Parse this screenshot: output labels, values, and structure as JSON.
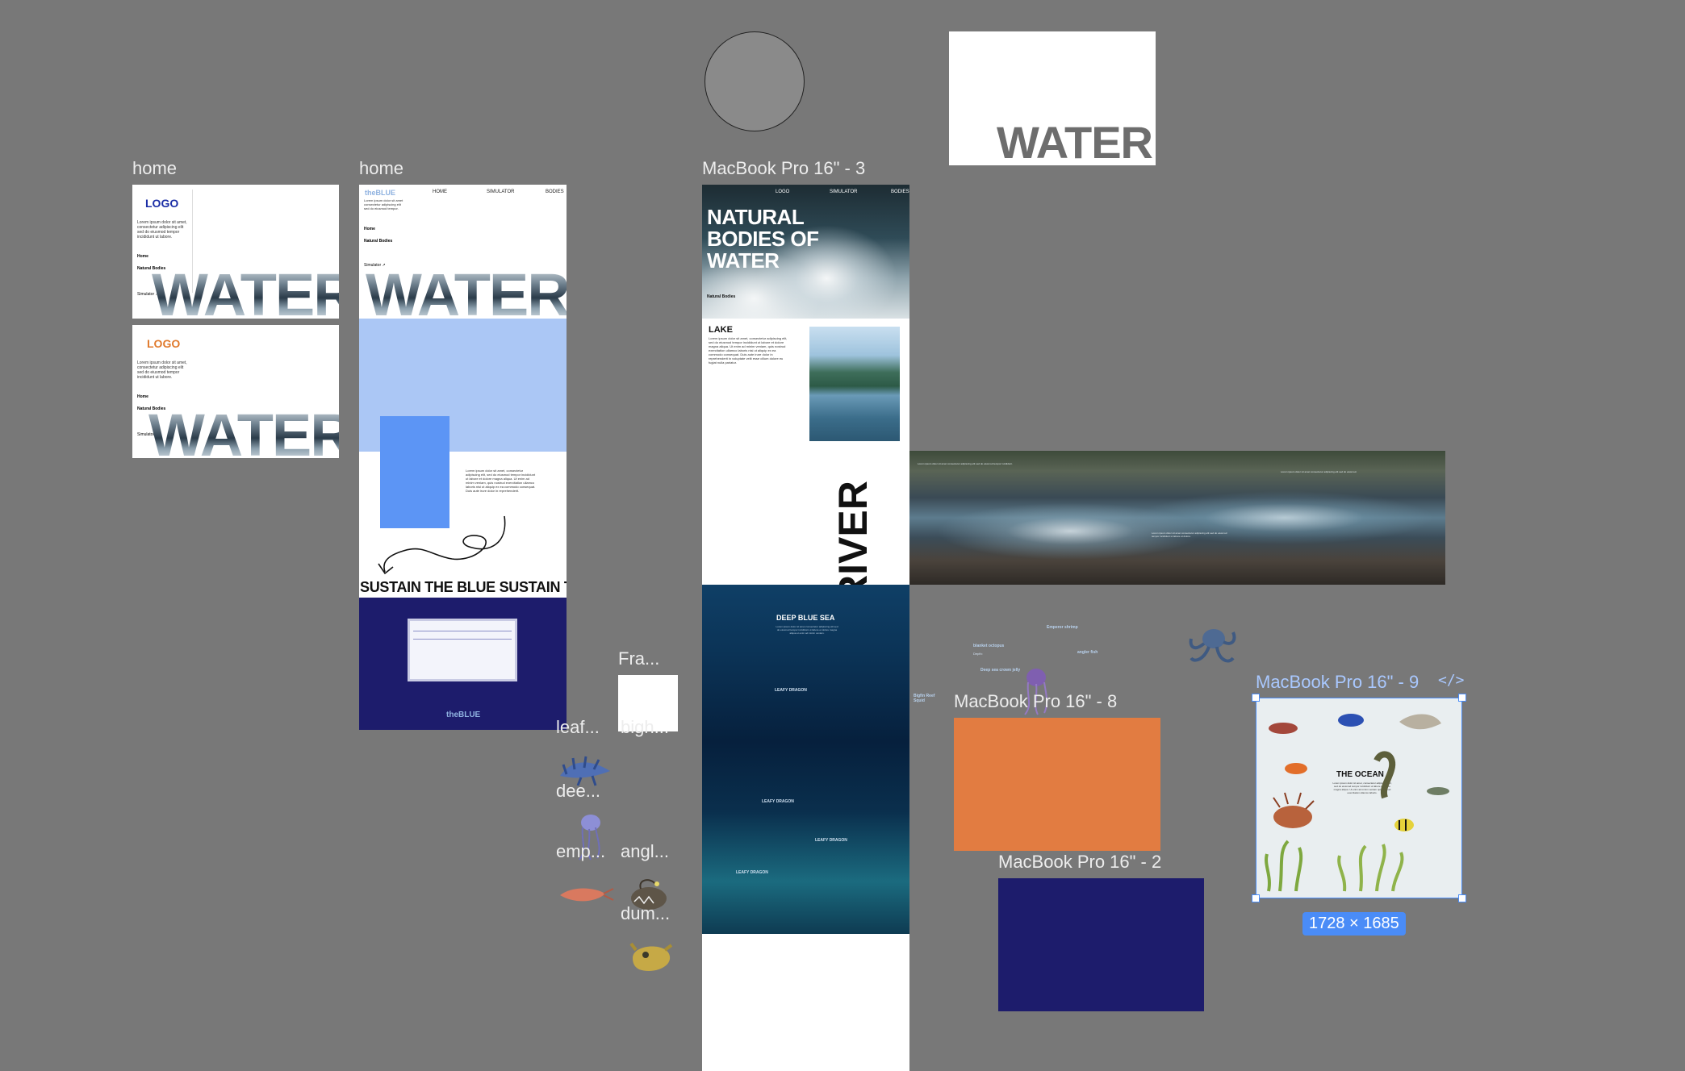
{
  "shapes": {
    "top_card_text": "WATER"
  },
  "frames": {
    "home1": {
      "label": "home",
      "variant_a": {
        "logo": "LOGO",
        "logo_color": "#1b2ea6",
        "menu": [
          "Home",
          "Natural Bodies"
        ],
        "link": "Simulator ↗",
        "hero": "WATER"
      },
      "variant_b": {
        "logo": "LOGO",
        "logo_color": "#e07a2d",
        "menu": [
          "Home",
          "Natural Bodies"
        ],
        "link": "Simulator ↗",
        "hero": "WATER"
      }
    },
    "home2": {
      "label": "home",
      "brand": "theBLUE",
      "nav": [
        "HOME",
        "SIMULATOR",
        "BODIES"
      ],
      "menu": [
        "Home",
        "Natural Bodies"
      ],
      "link": "Simulator ↗",
      "hero": "WATER",
      "marquee": "SUSTAIN THE BLUE SUSTAIN THE BLUE",
      "footer_brand": "theBLUE"
    },
    "mbp3": {
      "label": "MacBook Pro 16\" - 3",
      "nav": [
        "LOGO",
        "SIMULATOR",
        "BODIES"
      ],
      "hero": "NATURAL BODIES OF WATER",
      "hero_sub": "Natural Bodies",
      "lake_title": "LAKE",
      "river_title": "RIVER",
      "sea_title": "DEEP BLUE SEA",
      "sea_items": [
        "LEAFY DRAGON",
        "LEAFY DRAGON",
        "LEAFY DRAGON",
        "LEAFY DRAGON"
      ],
      "sea_depth_label": "Depth:"
    },
    "small_frame": {
      "label": "Fra..."
    },
    "mbp8": {
      "label": "MacBook Pro 16\" - 8",
      "color": "#e27c41"
    },
    "mbp2": {
      "label": "MacBook Pro 16\" - 2",
      "color": "#1d1c6c"
    },
    "mbp9": {
      "label": "MacBook Pro 16\" - 9",
      "code_icon": "code-icon",
      "title": "THE OCEAN",
      "size_badge": "1728 × 1685"
    }
  },
  "layers": [
    "leaf...",
    "bigh...",
    "dee...",
    "emp...",
    "angl...",
    "dum..."
  ],
  "floating_labels": {
    "blanket_octopus": "blanket octopus",
    "emperor_shrimp": "Emperor shrimp",
    "angler_fish": "angler fish",
    "deep_sea_crown_jelly": "Deep sea crown jelly",
    "bigfin_squid": "Bigfin Reef Squid",
    "depth": "Depth:"
  }
}
